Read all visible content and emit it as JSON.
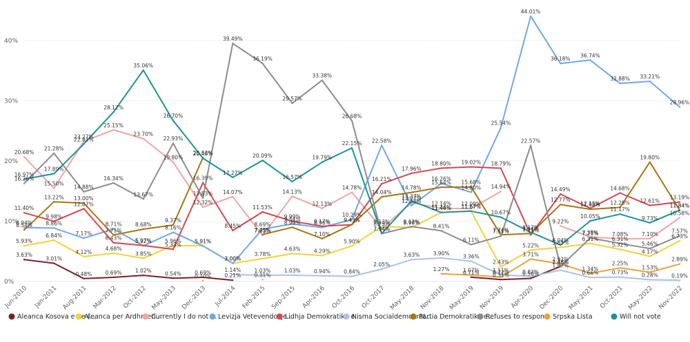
{
  "chart_data": {
    "type": "line",
    "title": "",
    "xlabel": "",
    "ylabel": "",
    "ylim": [
      0,
      45
    ],
    "y_ticks": [
      "0%",
      "10%",
      "20%",
      "30%",
      "40%"
    ],
    "grid": true,
    "legend_position": "bottom",
    "x": [
      "Jun-2010",
      "Jan-2011",
      "Aug-2011",
      "Mar-2012",
      "Oct-2012",
      "May-2013",
      "Dec-2013",
      "Jul-2014",
      "Feb-2015",
      "Sep-2015",
      "Apr-2016",
      "Oct-2016",
      "Oct-2017",
      "May-2018",
      "Nov-2018",
      "May-2019",
      "Nov-2019",
      "Apr-2020",
      "Dec-2020",
      "May-2021",
      "Oct-2021",
      "May-2022",
      "Nov-2022"
    ],
    "series": [
      {
        "name": "Aleanca Kosova e Re (...",
        "color": "#7a1f2b",
        "values": [
          3.63,
          3.01,
          0.48,
          0.69,
          1.02,
          0.54,
          0.69,
          0.21,
          null,
          null,
          null,
          null,
          null,
          null,
          null,
          0.71,
          0.31,
          0.5,
          2.48,
          null,
          null,
          null,
          null
        ],
        "labels": [
          "3.63%",
          "3.01%",
          "0.48%",
          "0.69%",
          "1.02%",
          "0.54%",
          "0.69%",
          "0.21%",
          "",
          "",
          "",
          "",
          "",
          "",
          "",
          "0.71%",
          "0.31%",
          "0.50%",
          "2.48%",
          "",
          "",
          "",
          ""
        ]
      },
      {
        "name": "Aleanca per Ardhmeri...",
        "color": "#f2d13a",
        "values": [
          5.93,
          6.84,
          4.12,
          4.68,
          3.85,
          5.96,
          5.91,
          3.0,
          3.78,
          4.63,
          4.29,
          5.9,
          9.13,
          8.96,
          11.46,
          11.67,
          2.43,
          5.22,
          5.65,
          6.31,
          5.32,
          4.17,
          6.73
        ],
        "labels": [
          "5.93%",
          "6.84%",
          "4.12%",
          "4.68%",
          "3.85%",
          "5.96%",
          "5.91%",
          "3.00%",
          "3.78%",
          "4.63%",
          "4.29%",
          "5.90%",
          "9.13%",
          "8.96%",
          "11.46%",
          "11.67%",
          "2.43%",
          "5.22%",
          "5.65%",
          "6.31%",
          "5.32%",
          "4.17%",
          "6.73%"
        ]
      },
      {
        "name": "Currently I do not ...",
        "color": "#f0a3a9",
        "values": [
          20.68,
          15.5,
          23.27,
          25.15,
          23.7,
          19.8,
          12.32,
          14.07,
          7.63,
          14.13,
          12.13,
          14.78,
          8.79,
          13.07,
          12.14,
          12.09,
          14.94,
          null,
          9.22,
          7.38,
          7.08,
          7.1,
          10.58
        ],
        "labels": [
          "20.68%",
          "15.50%",
          "23.27%",
          "25.15%",
          "23.70%",
          "19.80%",
          "12.32%",
          "14.07%",
          "7.63%",
          "14.13%",
          "12.13%",
          "14.78%",
          "8.79%",
          "13.07%",
          "12.14%",
          "12.09%",
          "14.94%",
          "",
          "9.22%",
          "7.38%",
          "7.08%",
          "7.10%",
          "10.58%"
        ]
      },
      {
        "name": "Levizja Vetevendosje...",
        "color": "#6fa8e6",
        "values": [
          8.94,
          8.86,
          7.17,
          8.71,
          5.92,
          8.16,
          5.91,
          3.0,
          8.69,
          9.54,
          8.96,
          10.29,
          22.58,
          12.58,
          16.26,
          14.8,
          25.54,
          44.01,
          36.18,
          36.74,
          32.88,
          33.21,
          28.96
        ],
        "labels": [
          "8.94%",
          "8.86%",
          "7.17%",
          "8.71%",
          "5.92%",
          "8.16%",
          "5.91%",
          "3.00%",
          "8.69%",
          "9.54%",
          "8.96%",
          "10.29%",
          "22.58%",
          "12.58%",
          "16.26%",
          "14.80%",
          "25.54%",
          "44.01%",
          "36.18%",
          "36.74%",
          "32.88%",
          "33.21%",
          "28.96%"
        ]
      },
      {
        "name": "Lidhja Demokratike e...",
        "color": "#d64550",
        "values": [
          11.4,
          9.98,
          12.07,
          6.43,
          5.97,
          5.33,
          16.39,
          8.45,
          11.53,
          9.99,
          9.17,
          9.43,
          16.21,
          17.96,
          18.8,
          19.02,
          18.79,
          7.71,
          14.49,
          12.15,
          14.68,
          12.61,
          13.19
        ],
        "labels": [
          "11.40%",
          "9.98%",
          "12.07%",
          "6.43%",
          "5.97%",
          "5.33%",
          "16.39%",
          "8.45%",
          "11.53%",
          "9.99%",
          "9.17%",
          "9.43%",
          "16.21%",
          "17.96%",
          "18.80%",
          "19.02%",
          "18.79%",
          "7.71%",
          "14.49%",
          "12.15%",
          "14.68%",
          "12.61%",
          "13.19%"
        ]
      },
      {
        "name": "Nisma Socialdemokrat...",
        "color": "#a9c2e6",
        "values": [
          null,
          null,
          null,
          null,
          null,
          null,
          null,
          1.14,
          1.03,
          1.03,
          0.94,
          0.84,
          2.05,
          3.63,
          3.9,
          3.36,
          1.11,
          0.82,
          1.87,
          0.66,
          0.73,
          0.28,
          0.19
        ],
        "labels": [
          "",
          "",
          "",
          "",
          "",
          "",
          "",
          "1.14%",
          "1.03%",
          "1.03%",
          "0.94%",
          "0.84%",
          "2.05%",
          "3.63%",
          "3.90%",
          "3.36%",
          "1.11%",
          "0.82%",
          "1.87%",
          "0.66%",
          "0.73%",
          "0.28%",
          "0.19%"
        ]
      },
      {
        "name": "Partia Demokratike e...",
        "color": "#a87412",
        "values": [
          8.54,
          13.22,
          13.0,
          7.71,
          8.68,
          9.37,
          20.53,
          null,
          7.79,
          8.99,
          7.1,
          9.43,
          14.04,
          14.78,
          15.64,
          15.68,
          7.74,
          7.96,
          12.77,
          11.98,
          12.29,
          19.8,
          11.84
        ],
        "labels": [
          "8.54%",
          "13.22%",
          "13.00%",
          "7.71%",
          "8.68%",
          "9.37%",
          "20.53%",
          "",
          "7.79%",
          "8.99%",
          "7.10%",
          "9.43%",
          "14.04%",
          "14.78%",
          "15.64%",
          "15.68%",
          "7.74%",
          "7.96%",
          "12.77%",
          "11.98%",
          "12.29%",
          "19.80%",
          "11.84%"
        ]
      },
      {
        "name": "Refuses to respond",
        "color": "#8c8c8c",
        "values": [
          16.26,
          21.28,
          14.88,
          16.34,
          13.67,
          22.93,
          13.83,
          39.49,
          36.19,
          29.57,
          33.38,
          26.68,
          7.94,
          9.13,
          8.41,
          6.11,
          7.51,
          22.57,
          2.48,
          7.21,
          6.31,
          5.46,
          7.57
        ],
        "labels": [
          "16.26%",
          "21.28%",
          "14.88%",
          "16.34%",
          "13.67%",
          "22.93%",
          "13.83%",
          "39.49%",
          "36.19%",
          "29.57%",
          "33.38%",
          "26.68%",
          "7.94%",
          "9.13%",
          "8.41%",
          "6.11%",
          "7.51%",
          "22.57%",
          "2.48%",
          "7.21%",
          "6.31%",
          "5.46%",
          "7.57%"
        ]
      },
      {
        "name": "Srpska Lista",
        "color": "#e8a33a",
        "values": [
          null,
          null,
          null,
          null,
          null,
          null,
          0.1,
          null,
          0.31,
          null,
          null,
          null,
          null,
          null,
          1.27,
          1.07,
          0.72,
          3.71,
          2.92,
          1.34,
          2.25,
          1.53,
          2.89
        ],
        "labels": [
          "",
          "",
          "",
          "",
          "",
          "",
          "0.10%",
          "",
          "0.31%",
          "",
          "",
          "",
          "",
          "",
          "1.27%",
          "1.07%",
          "0.72%",
          "3.71%",
          "2.92%",
          "1.34%",
          "2.25%",
          "1.53%",
          "2.89%"
        ]
      },
      {
        "name": "Will not vote",
        "color": "#1a9396",
        "values": [
          16.97,
          17.89,
          22.81,
          28.12,
          35.06,
          26.7,
          20.46,
          17.27,
          20.09,
          16.57,
          19.79,
          22.15,
          7.94,
          13.37,
          11.44,
          11.67,
          10.67,
          8.17,
          6.04,
          10.05,
          11.17,
          9.73,
          11.84
        ],
        "labels": [
          "16.97%",
          "17.89%",
          "22.81%",
          "28.12%",
          "35.06%",
          "26.70%",
          "20.46%",
          "17.27%",
          "20.09%",
          "16.57%",
          "19.79%",
          "22.15%",
          "7.94%",
          "13.37%",
          "11.44%",
          "11.67%",
          "10.67%",
          "8.17%",
          "6.04%",
          "10.05%",
          "11.17%",
          "9.73%",
          "11.84%"
        ]
      }
    ]
  }
}
